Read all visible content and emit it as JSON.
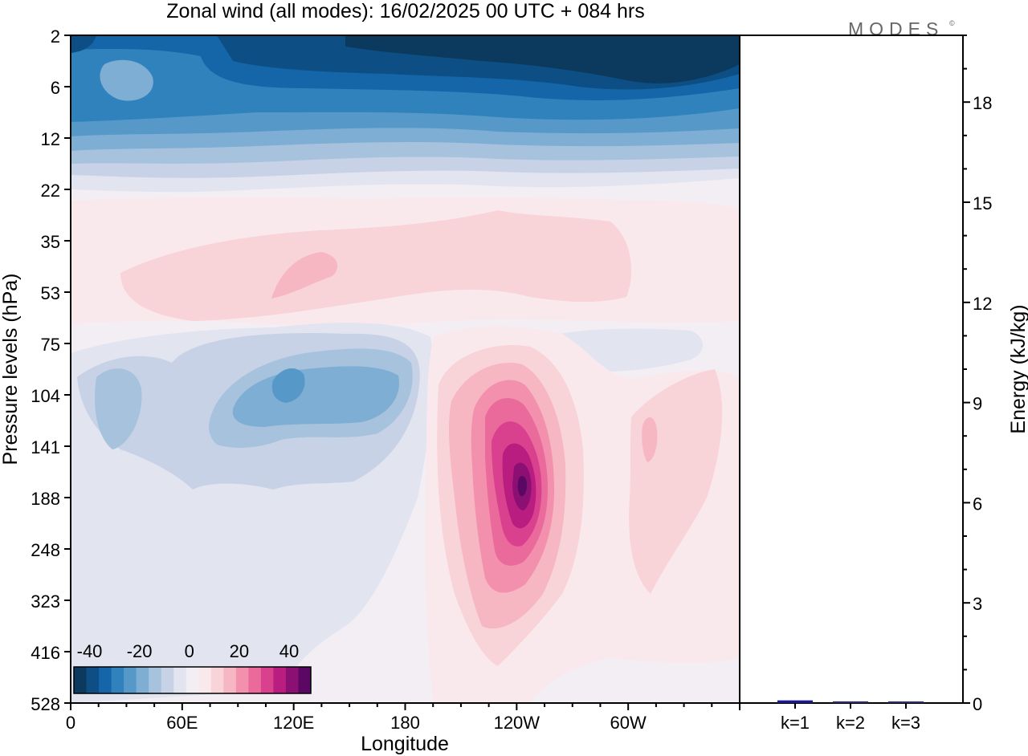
{
  "title": "Zonal wind (all modes):  16/02/2025  00 UTC  + 084 hrs",
  "logo_text": "MODES",
  "logo_mark": "©",
  "chart_data": [
    {
      "type": "heatmap",
      "title": "Zonal wind (all modes):  16/02/2025  00 UTC  + 084 hrs",
      "xlabel": "Longitude",
      "ylabel": "Pressure levels (hPa)",
      "x_ticks": [
        "0",
        "60E",
        "120E",
        "180",
        "120W",
        "60W"
      ],
      "x_tick_values": [
        0,
        60,
        120,
        180,
        240,
        300
      ],
      "xlim": [
        0,
        360
      ],
      "y_ticks": [
        "2",
        "6",
        "12",
        "22",
        "35",
        "53",
        "75",
        "104",
        "141",
        "188",
        "248",
        "323",
        "416",
        "528"
      ],
      "y_scale": "log",
      "colorbar": {
        "tick_labels": [
          "-40",
          "-20",
          "0",
          "20",
          "40"
        ],
        "tick_values": [
          -40,
          -20,
          0,
          20,
          40
        ],
        "levels": [
          -45,
          -40,
          -35,
          -30,
          -25,
          -20,
          -15,
          -10,
          -5,
          0,
          5,
          10,
          15,
          20,
          25,
          30,
          35,
          40,
          45,
          50
        ],
        "colors": [
          "#0b3a5e",
          "#0d4f85",
          "#1466a8",
          "#2f82bc",
          "#5698c8",
          "#7eaed3",
          "#a6c2dd",
          "#c7d2e6",
          "#e2e4f0",
          "#f3eef4",
          "#fae9ec",
          "#f8d3d8",
          "#f6b6c2",
          "#f290ad",
          "#ea6a9c",
          "#d9408d",
          "#b81d7f",
          "#8c0f74",
          "#5a0863"
        ]
      },
      "features": [
        {
          "name": "stratospheric easterlies",
          "levels": "2-12 hPa",
          "value": -45
        },
        {
          "name": "westerly jet core",
          "longitude": "120W",
          "level": "188 hPa",
          "value": 45
        }
      ]
    },
    {
      "type": "bar",
      "ylabel": "Energy (kJ/kg)",
      "categories": [
        "k=1",
        "k=2",
        "k=3"
      ],
      "values": [
        0.08,
        0.05,
        0.04
      ],
      "ylim": [
        0,
        20
      ],
      "y_ticks": [
        "0",
        "3",
        "6",
        "9",
        "12",
        "15",
        "18"
      ],
      "y_tick_values": [
        0,
        3,
        6,
        9,
        12,
        15,
        18
      ]
    }
  ]
}
